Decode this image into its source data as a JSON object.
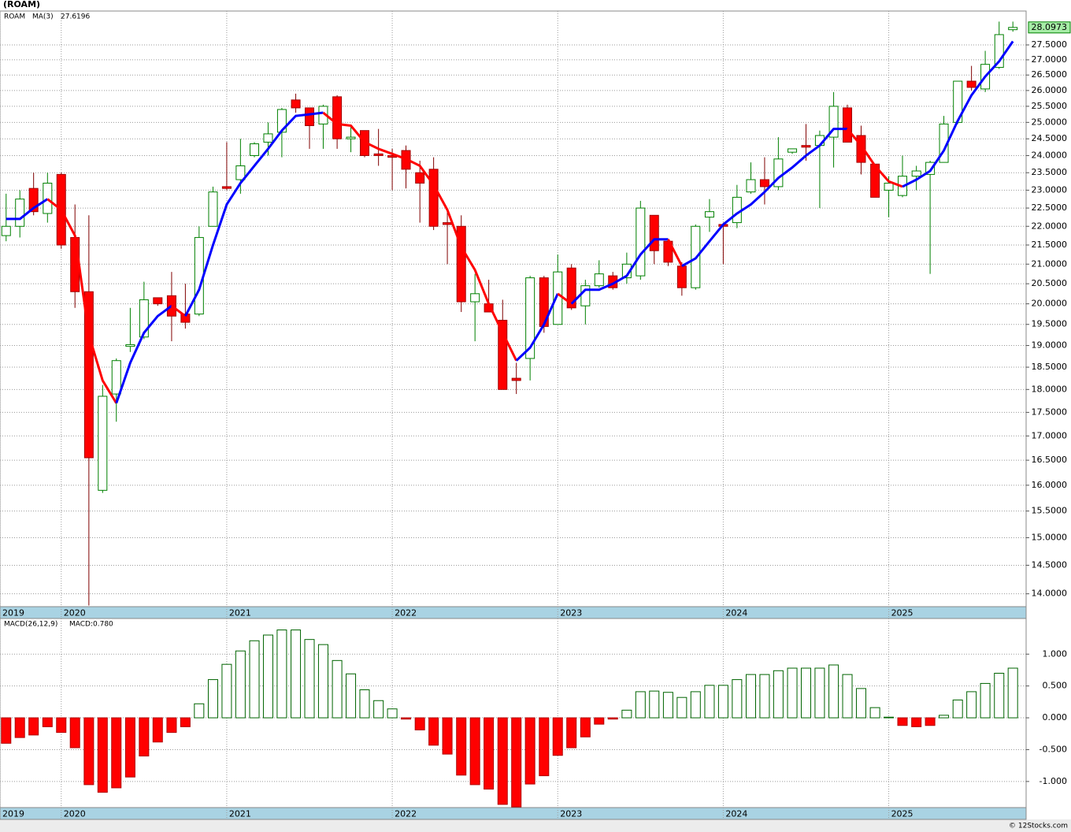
{
  "chart_data": [
    {
      "type": "candlestick",
      "title": "(ROAM)",
      "log_scale": true,
      "grid": true,
      "xlim": [
        2019.63,
        2025.83
      ],
      "xticks": [
        {
          "value": 2019.63,
          "label": "2019"
        },
        2020,
        2021,
        2022,
        2023,
        2024,
        2025
      ],
      "ylim": [
        13.78,
        28.67
      ],
      "yticks": [
        {
          "value": 14,
          "label": "14.0000"
        },
        {
          "value": 14.5,
          "label": "14.5000"
        },
        {
          "value": 15,
          "label": "15.0000"
        },
        {
          "value": 15.5,
          "label": "15.5000"
        },
        {
          "value": 16,
          "label": "16.0000"
        },
        {
          "value": 16.5,
          "label": "16.5000"
        },
        {
          "value": 17,
          "label": "17.0000"
        },
        {
          "value": 17.5,
          "label": "17.5000"
        },
        {
          "value": 18,
          "label": "18.0000"
        },
        {
          "value": 18.5,
          "label": "18.5000"
        },
        {
          "value": 19,
          "label": "19.0000"
        },
        {
          "value": 19.5,
          "label": "19.5000"
        },
        {
          "value": 20,
          "label": "20.0000"
        },
        {
          "value": 20.5,
          "label": "20.5000"
        },
        {
          "value": 21,
          "label": "21.0000"
        },
        {
          "value": 21.5,
          "label": "21.5000"
        },
        {
          "value": 22,
          "label": "22.0000"
        },
        {
          "value": 22.5,
          "label": "22.5000"
        },
        {
          "value": 23,
          "label": "23.0000"
        },
        {
          "value": 23.5,
          "label": "23.5000"
        },
        {
          "value": 24,
          "label": "24.0000"
        },
        {
          "value": 24.5,
          "label": "24.5000"
        },
        {
          "value": 25,
          "label": "25.0000"
        },
        {
          "value": 25.5,
          "label": "25.5000"
        },
        {
          "value": 26,
          "label": "26.0000"
        },
        {
          "value": 26.5,
          "label": "26.5000"
        },
        {
          "value": 27,
          "label": "27.0000"
        },
        {
          "value": 27.5,
          "label": "27.5000"
        }
      ],
      "x": [
        2019.667,
        2019.75,
        2019.833,
        2019.917,
        2020,
        2020.083,
        2020.167,
        2020.25,
        2020.333,
        2020.417,
        2020.5,
        2020.583,
        2020.667,
        2020.75,
        2020.833,
        2020.917,
        2021,
        2021.083,
        2021.167,
        2021.25,
        2021.333,
        2021.417,
        2021.5,
        2021.583,
        2021.667,
        2021.75,
        2021.833,
        2021.917,
        2022,
        2022.083,
        2022.167,
        2022.25,
        2022.333,
        2022.417,
        2022.5,
        2022.583,
        2022.667,
        2022.75,
        2022.833,
        2022.917,
        2023,
        2023.083,
        2023.167,
        2023.25,
        2023.333,
        2023.417,
        2023.5,
        2023.583,
        2023.667,
        2023.75,
        2023.833,
        2023.917,
        2024,
        2024.083,
        2024.167,
        2024.25,
        2024.333,
        2024.417,
        2024.5,
        2024.583,
        2024.667,
        2024.75,
        2024.833,
        2024.917,
        2025,
        2025.083,
        2025.167,
        2025.25,
        2025.333,
        2025.417,
        2025.5,
        2025.583,
        2025.667,
        2025.75
      ],
      "series": [
        {
          "name": "ROAM",
          "up_color": "#008000",
          "down_color": "#ff0000",
          "open": [
            21.75,
            22.0,
            23.05,
            22.35,
            23.45,
            21.7,
            20.3,
            15.9,
            17.9,
            18.98,
            19.2,
            20.15,
            20.2,
            19.75,
            19.75,
            22.0,
            23.1,
            23.3,
            24.0,
            24.4,
            24.7,
            25.7,
            25.45,
            24.95,
            25.8,
            24.5,
            24.75,
            24.05,
            24.0,
            24.15,
            23.5,
            23.6,
            22.1,
            22.0,
            20.05,
            20.0,
            19.6,
            18.25,
            18.7,
            20.65,
            19.5,
            20.9,
            19.95,
            20.45,
            20.7,
            20.65,
            20.7,
            22.3,
            21.6,
            20.95,
            20.4,
            22.25,
            22.05,
            22.1,
            22.95,
            23.3,
            23.1,
            24.1,
            24.3,
            24.3,
            24.55,
            25.45,
            24.6,
            23.75,
            23.0,
            22.85,
            23.4,
            23.45,
            23.8,
            25.0,
            26.3,
            26.05,
            26.75,
            28.02
          ],
          "high": [
            22.9,
            23.0,
            23.5,
            23.5,
            23.5,
            22.6,
            22.3,
            18.1,
            18.7,
            19.9,
            20.55,
            20.15,
            20.8,
            20.5,
            22.0,
            23.1,
            24.4,
            24.5,
            24.4,
            25.0,
            25.45,
            25.9,
            25.45,
            25.55,
            25.85,
            24.9,
            24.75,
            24.8,
            24.2,
            24.3,
            23.85,
            23.95,
            22.5,
            22.3,
            20.75,
            20.6,
            20.1,
            18.6,
            20.7,
            20.7,
            21.25,
            21.0,
            20.6,
            21.1,
            20.8,
            21.3,
            22.7,
            22.3,
            21.65,
            21.05,
            22.05,
            22.75,
            22.1,
            23.15,
            23.8,
            23.95,
            24.55,
            24.2,
            24.95,
            24.75,
            25.95,
            25.55,
            24.9,
            23.75,
            23.4,
            24.0,
            23.7,
            23.85,
            25.2,
            26.3,
            26.8,
            27.3,
            28.3,
            28.3
          ],
          "low": [
            21.6,
            21.7,
            22.3,
            22.1,
            21.4,
            19.9,
            13.8,
            15.85,
            17.3,
            18.85,
            19.15,
            19.95,
            19.1,
            19.4,
            19.7,
            22.0,
            23.0,
            22.9,
            23.95,
            24.0,
            23.95,
            25.3,
            24.2,
            24.2,
            24.2,
            24.1,
            23.95,
            23.7,
            23.0,
            23.05,
            22.1,
            21.9,
            21.0,
            19.8,
            19.1,
            19.8,
            18.0,
            17.9,
            18.2,
            19.3,
            19.5,
            19.85,
            19.5,
            20.4,
            20.35,
            20.5,
            20.6,
            21.0,
            20.95,
            20.2,
            20.35,
            21.85,
            21.0,
            21.95,
            22.9,
            22.6,
            23.0,
            24.05,
            23.85,
            22.5,
            23.65,
            24.4,
            23.45,
            22.8,
            22.25,
            22.8,
            23.0,
            20.75,
            23.8,
            24.95,
            26.0,
            25.95,
            26.7,
            27.95
          ],
          "close": [
            22.0,
            22.75,
            22.4,
            23.2,
            21.5,
            20.3,
            16.55,
            17.85,
            18.65,
            19.02,
            20.1,
            20.0,
            19.7,
            19.55,
            21.7,
            22.95,
            23.05,
            23.7,
            24.35,
            24.65,
            25.4,
            25.45,
            24.9,
            25.5,
            24.5,
            24.55,
            24.0,
            24.0,
            23.95,
            23.6,
            23.2,
            22.0,
            22.05,
            20.05,
            20.25,
            19.8,
            18.0,
            18.2,
            20.65,
            19.45,
            20.8,
            19.9,
            20.45,
            20.75,
            20.4,
            21.0,
            22.5,
            21.35,
            21.05,
            20.4,
            22.0,
            22.4,
            22.0,
            22.8,
            23.3,
            23.1,
            23.9,
            24.2,
            24.25,
            24.6,
            25.5,
            24.4,
            23.8,
            22.8,
            23.2,
            23.4,
            23.55,
            23.8,
            24.95,
            26.3,
            26.1,
            26.85,
            27.85,
            28.0973
          ]
        },
        {
          "name": "MA(3)",
          "type": "line",
          "rise_color": "#0000ff",
          "fall_color": "#ff0000",
          "values": [
            22.2,
            22.2,
            22.5,
            22.75,
            22.45,
            21.75,
            19.25,
            18.2,
            17.7,
            18.6,
            19.3,
            19.7,
            19.95,
            19.7,
            20.35,
            21.5,
            22.6,
            23.2,
            23.7,
            24.2,
            24.75,
            25.2,
            25.25,
            25.3,
            24.95,
            24.9,
            24.4,
            24.2,
            24.05,
            23.9,
            23.7,
            23.15,
            22.45,
            21.45,
            20.85,
            20.0,
            19.3,
            18.65,
            18.95,
            19.5,
            20.25,
            20.0,
            20.35,
            20.35,
            20.5,
            20.7,
            21.25,
            21.65,
            21.65,
            20.95,
            21.15,
            21.6,
            22.05,
            22.35,
            22.6,
            22.95,
            23.35,
            23.65,
            24.0,
            24.3,
            24.8,
            24.8,
            24.3,
            23.7,
            23.25,
            23.1,
            23.3,
            23.55,
            24.15,
            25.05,
            25.85,
            26.45,
            26.95,
            27.6196
          ]
        }
      ]
    },
    {
      "type": "bar",
      "grid": true,
      "xlim": [
        2019.63,
        2025.83
      ],
      "xticks": [
        {
          "value": 2019.63,
          "label": "2019"
        },
        2020,
        2021,
        2022,
        2023,
        2024,
        2025
      ],
      "ylim": [
        -1.41,
        1.56
      ],
      "yticks": [
        {
          "value": -1,
          "label": "-1.000"
        },
        {
          "value": -0.5,
          "label": "-0.500"
        },
        {
          "value": 0,
          "label": "0.000"
        },
        {
          "value": 0.5,
          "label": "0.500"
        },
        {
          "value": 1,
          "label": "1.000"
        }
      ],
      "x": [
        2019.667,
        2019.75,
        2019.833,
        2019.917,
        2020,
        2020.083,
        2020.167,
        2020.25,
        2020.333,
        2020.417,
        2020.5,
        2020.583,
        2020.667,
        2020.75,
        2020.833,
        2020.917,
        2021,
        2021.083,
        2021.167,
        2021.25,
        2021.333,
        2021.417,
        2021.5,
        2021.583,
        2021.667,
        2021.75,
        2021.833,
        2021.917,
        2022,
        2022.083,
        2022.167,
        2022.25,
        2022.333,
        2022.417,
        2022.5,
        2022.583,
        2022.667,
        2022.75,
        2022.833,
        2022.917,
        2023,
        2023.083,
        2023.167,
        2023.25,
        2023.333,
        2023.417,
        2023.5,
        2023.583,
        2023.667,
        2023.75,
        2023.833,
        2023.917,
        2024,
        2024.083,
        2024.167,
        2024.25,
        2024.333,
        2024.417,
        2024.5,
        2024.583,
        2024.667,
        2024.75,
        2024.833,
        2024.917,
        2025,
        2025.083,
        2025.167,
        2025.25,
        2025.333,
        2025.417,
        2025.5,
        2025.583,
        2025.667,
        2025.75
      ],
      "series": [
        {
          "name": "MACD(26,12,9)",
          "up_color": "#006400",
          "down_color": "#ff0000",
          "values": [
            -0.4,
            -0.31,
            -0.27,
            -0.14,
            -0.23,
            -0.47,
            -1.05,
            -1.17,
            -1.1,
            -0.93,
            -0.6,
            -0.38,
            -0.23,
            -0.14,
            0.22,
            0.6,
            0.84,
            1.05,
            1.21,
            1.3,
            1.38,
            1.38,
            1.23,
            1.15,
            0.9,
            0.69,
            0.44,
            0.27,
            0.14,
            -0.02,
            -0.19,
            -0.43,
            -0.57,
            -0.9,
            -1.05,
            -1.12,
            -1.36,
            -1.4,
            -1.04,
            -0.91,
            -0.59,
            -0.47,
            -0.3,
            -0.1,
            -0.02,
            0.12,
            0.41,
            0.42,
            0.4,
            0.32,
            0.41,
            0.51,
            0.51,
            0.6,
            0.68,
            0.68,
            0.74,
            0.78,
            0.78,
            0.78,
            0.83,
            0.68,
            0.46,
            0.16,
            0.01,
            -0.12,
            -0.14,
            -0.12,
            0.04,
            0.28,
            0.41,
            0.54,
            0.7,
            0.78
          ]
        }
      ],
      "last_value_label": "MACD:0.780"
    }
  ],
  "footer": "© 12Stocks.com"
}
